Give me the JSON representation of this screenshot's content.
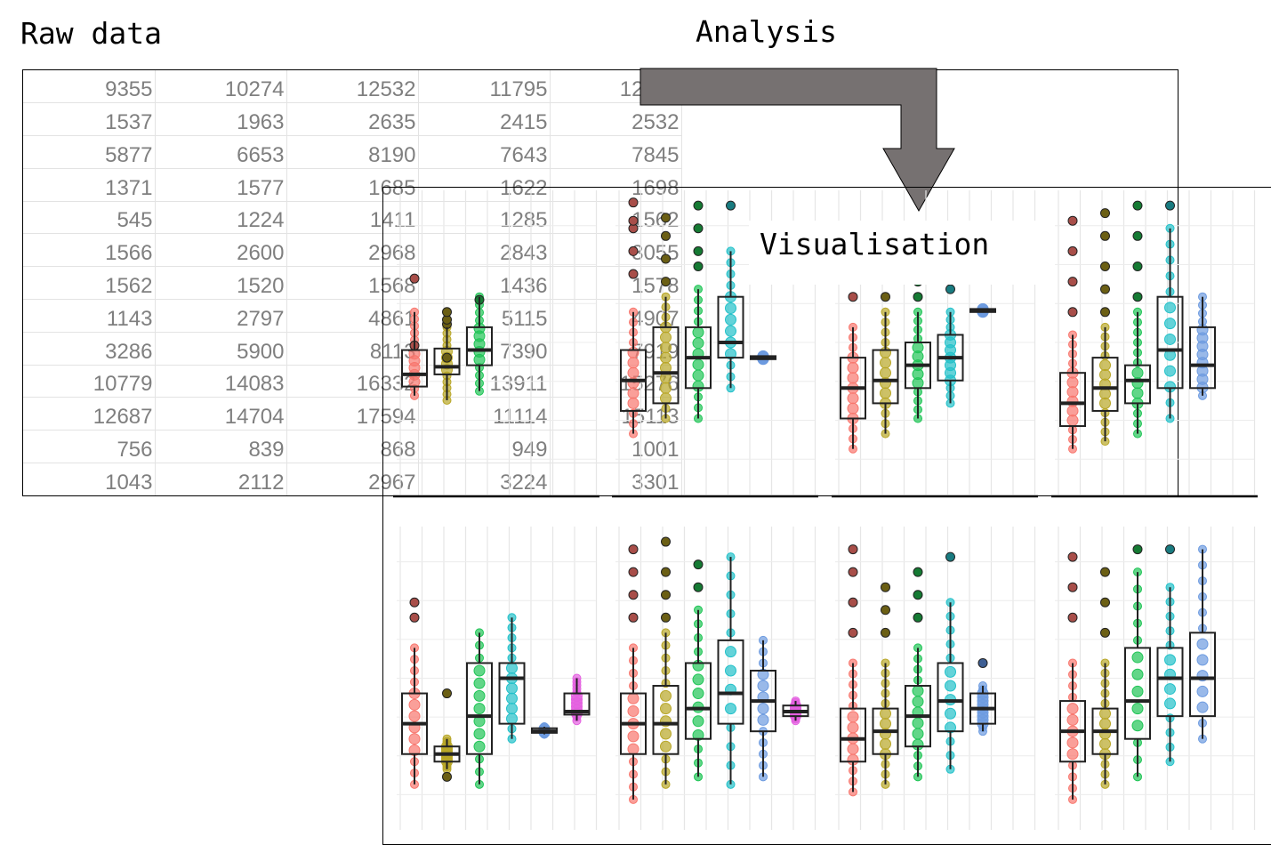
{
  "labels": {
    "raw_data": "Raw data",
    "analysis": "Analysis",
    "visualisation": "Visualisation"
  },
  "raw_table": {
    "rows": [
      [
        "9355",
        "10274",
        "12532",
        "11795",
        "12095"
      ],
      [
        "1537",
        "1963",
        "2635",
        "2415",
        "2532"
      ],
      [
        "5877",
        "6653",
        "8190",
        "7643",
        "7845"
      ],
      [
        "1371",
        "1577",
        "1685",
        "1622",
        "1698"
      ],
      [
        "545",
        "1224",
        "1411",
        "1285",
        "1562"
      ],
      [
        "1566",
        "2600",
        "2968",
        "2843",
        "3055"
      ],
      [
        "1562",
        "1520",
        "1568",
        "1436",
        "1578"
      ],
      [
        "1143",
        "2797",
        "4861",
        "5115",
        "4907"
      ],
      [
        "3286",
        "5900",
        "8113",
        "7390",
        "7919"
      ],
      [
        "10779",
        "14083",
        "16332",
        "13911",
        "15276"
      ],
      [
        "12687",
        "14704",
        "17594",
        "11114",
        "15113"
      ],
      [
        "756",
        "839",
        "868",
        "949",
        "1001"
      ],
      [
        "1043",
        "2112",
        "2967",
        "3224",
        "3301"
      ]
    ]
  },
  "colors": {
    "arrow": "#767171",
    "text_grey": "#7f7f7f",
    "series": [
      "#f8766d",
      "#b8a626",
      "#1fc456",
      "#22c1c9",
      "#6d9be0",
      "#e45fe0"
    ],
    "outlier": [
      "#a84e49",
      "#6b5f14",
      "#157a33",
      "#197b80",
      "#3e5f94",
      "#9a3d97"
    ]
  },
  "chart_data": {
    "type": "boxplot-grid",
    "panels": [
      {
        "groups": [
          {
            "c": 0,
            "min": 0.65,
            "q1": 0.71,
            "med": 0.79,
            "q3": 0.95,
            "max": 1.2,
            "out": [
              0.98,
              1.42
            ]
          },
          {
            "c": 1,
            "min": 0.62,
            "q1": 0.79,
            "med": 0.84,
            "q3": 0.96,
            "max": 1.1,
            "out": [
              0.9,
              1.12,
              1.15,
              1.2
            ]
          },
          {
            "c": 2,
            "min": 0.68,
            "q1": 0.85,
            "med": 0.95,
            "q3": 1.1,
            "max": 1.3,
            "out": [
              1.28
            ]
          }
        ]
      },
      {
        "groups": [
          {
            "c": 0,
            "min": 0.4,
            "q1": 0.55,
            "med": 0.75,
            "q3": 0.95,
            "max": 1.2,
            "out": [
              1.45,
              1.6,
              1.75,
              1.8,
              1.92
            ]
          },
          {
            "c": 1,
            "min": 0.5,
            "q1": 0.6,
            "med": 0.8,
            "q3": 1.1,
            "max": 1.3,
            "out": [
              1.4,
              1.55,
              1.7,
              1.82
            ]
          },
          {
            "c": 2,
            "min": 0.5,
            "q1": 0.7,
            "med": 0.9,
            "q3": 1.1,
            "max": 1.35,
            "out": [
              1.5,
              1.6,
              1.75,
              1.9
            ]
          },
          {
            "c": 3,
            "min": 0.7,
            "q1": 0.9,
            "med": 1.0,
            "q3": 1.3,
            "max": 1.6,
            "out": [
              1.9
            ]
          },
          {
            "c": 4,
            "min": 0.89,
            "q1": 0.89,
            "med": 0.9,
            "q3": 0.91,
            "max": 0.91,
            "out": []
          }
        ]
      },
      {
        "groups": [
          {
            "c": 0,
            "min": 0.3,
            "q1": 0.5,
            "med": 0.7,
            "q3": 0.9,
            "max": 1.1,
            "out": [
              1.3,
              1.5,
              1.6
            ]
          },
          {
            "c": 1,
            "min": 0.4,
            "q1": 0.6,
            "med": 0.75,
            "q3": 0.95,
            "max": 1.2,
            "out": [
              1.3,
              1.45,
              1.55
            ]
          },
          {
            "c": 2,
            "min": 0.5,
            "q1": 0.7,
            "med": 0.85,
            "q3": 1.0,
            "max": 1.2,
            "out": [
              1.3,
              1.4,
              1.5
            ]
          },
          {
            "c": 3,
            "min": 0.6,
            "q1": 0.75,
            "med": 0.9,
            "q3": 1.05,
            "max": 1.2,
            "out": [
              1.35,
              1.45
            ]
          },
          {
            "c": 4,
            "min": 1.2,
            "q1": 1.2,
            "med": 1.21,
            "q3": 1.22,
            "max": 1.22,
            "out": []
          }
        ]
      },
      {
        "groups": [
          {
            "c": 0,
            "min": 0.3,
            "q1": 0.45,
            "med": 0.6,
            "q3": 0.8,
            "max": 1.05,
            "out": [
              1.2,
              1.4,
              1.6,
              1.8
            ]
          },
          {
            "c": 1,
            "min": 0.35,
            "q1": 0.55,
            "med": 0.7,
            "q3": 0.9,
            "max": 1.1,
            "out": [
              1.2,
              1.35,
              1.5,
              1.7,
              1.85
            ]
          },
          {
            "c": 2,
            "min": 0.4,
            "q1": 0.6,
            "med": 0.75,
            "q3": 0.85,
            "max": 1.2,
            "out": [
              1.3,
              1.5,
              1.7,
              1.9
            ]
          },
          {
            "c": 3,
            "min": 0.5,
            "q1": 0.7,
            "med": 0.95,
            "q3": 1.3,
            "max": 1.75,
            "out": [
              1.9
            ]
          },
          {
            "c": 4,
            "min": 0.65,
            "q1": 0.7,
            "med": 0.85,
            "q3": 1.1,
            "max": 1.3,
            "out": []
          }
        ]
      },
      {
        "groups": [
          {
            "c": 0,
            "min": 0.3,
            "q1": 0.5,
            "med": 0.7,
            "q3": 0.9,
            "max": 1.2,
            "out": [
              1.4,
              1.5
            ]
          },
          {
            "c": 1,
            "min": 0.4,
            "q1": 0.45,
            "med": 0.5,
            "q3": 0.55,
            "max": 0.6,
            "out": [
              0.35,
              0.9
            ]
          },
          {
            "c": 2,
            "min": 0.3,
            "q1": 0.5,
            "med": 0.75,
            "q3": 1.1,
            "max": 1.3,
            "out": []
          },
          {
            "c": 3,
            "min": 0.6,
            "q1": 0.7,
            "med": 1.0,
            "q3": 1.1,
            "max": 1.4,
            "out": []
          },
          {
            "c": 4,
            "min": 0.63,
            "q1": 0.64,
            "med": 0.65,
            "q3": 0.67,
            "max": 0.68,
            "out": []
          },
          {
            "c": 5,
            "min": 0.72,
            "q1": 0.76,
            "med": 0.78,
            "q3": 0.9,
            "max": 1.0,
            "out": []
          }
        ]
      },
      {
        "groups": [
          {
            "c": 0,
            "min": 0.2,
            "q1": 0.5,
            "med": 0.7,
            "q3": 0.9,
            "max": 1.2,
            "out": [
              1.4,
              1.55,
              1.7,
              1.85
            ]
          },
          {
            "c": 1,
            "min": 0.3,
            "q1": 0.5,
            "med": 0.7,
            "q3": 0.95,
            "max": 1.3,
            "out": [
              1.4,
              1.55,
              1.7,
              1.9
            ]
          },
          {
            "c": 2,
            "min": 0.35,
            "q1": 0.6,
            "med": 0.8,
            "q3": 1.1,
            "max": 1.45,
            "out": [
              1.6,
              1.75
            ]
          },
          {
            "c": 3,
            "min": 0.3,
            "q1": 0.7,
            "med": 0.9,
            "q3": 1.25,
            "max": 1.8,
            "out": []
          },
          {
            "c": 4,
            "min": 0.35,
            "q1": 0.65,
            "med": 0.85,
            "q3": 1.05,
            "max": 1.25,
            "out": []
          },
          {
            "c": 5,
            "min": 0.72,
            "q1": 0.75,
            "med": 0.78,
            "q3": 0.82,
            "max": 0.85,
            "out": []
          }
        ]
      },
      {
        "groups": [
          {
            "c": 0,
            "min": 0.25,
            "q1": 0.45,
            "med": 0.6,
            "q3": 0.8,
            "max": 1.1,
            "out": [
              1.3,
              1.5,
              1.7,
              1.85
            ]
          },
          {
            "c": 1,
            "min": 0.3,
            "q1": 0.5,
            "med": 0.65,
            "q3": 0.8,
            "max": 1.1,
            "out": [
              1.3,
              1.45,
              1.6
            ]
          },
          {
            "c": 2,
            "min": 0.35,
            "q1": 0.55,
            "med": 0.75,
            "q3": 0.95,
            "max": 1.2,
            "out": [
              1.4,
              1.55,
              1.7
            ]
          },
          {
            "c": 3,
            "min": 0.4,
            "q1": 0.65,
            "med": 0.85,
            "q3": 1.1,
            "max": 1.5,
            "out": [
              1.8
            ]
          },
          {
            "c": 4,
            "min": 0.65,
            "q1": 0.7,
            "med": 0.8,
            "q3": 0.9,
            "max": 0.95,
            "out": [
              1.1
            ]
          }
        ]
      },
      {
        "groups": [
          {
            "c": 0,
            "min": 0.2,
            "q1": 0.45,
            "med": 0.65,
            "q3": 0.85,
            "max": 1.1,
            "out": [
              1.4,
              1.6,
              1.8
            ]
          },
          {
            "c": 1,
            "min": 0.3,
            "q1": 0.5,
            "med": 0.65,
            "q3": 0.8,
            "max": 1.1,
            "out": [
              1.3,
              1.5,
              1.7
            ]
          },
          {
            "c": 2,
            "min": 0.35,
            "q1": 0.6,
            "med": 0.85,
            "q3": 1.2,
            "max": 1.7,
            "out": [
              1.85
            ]
          },
          {
            "c": 3,
            "min": 0.45,
            "q1": 0.75,
            "med": 1.0,
            "q3": 1.2,
            "max": 1.6,
            "out": [
              1.85
            ]
          },
          {
            "c": 4,
            "min": 0.6,
            "q1": 0.75,
            "med": 1.0,
            "q3": 1.3,
            "max": 1.85,
            "out": []
          }
        ]
      }
    ]
  }
}
